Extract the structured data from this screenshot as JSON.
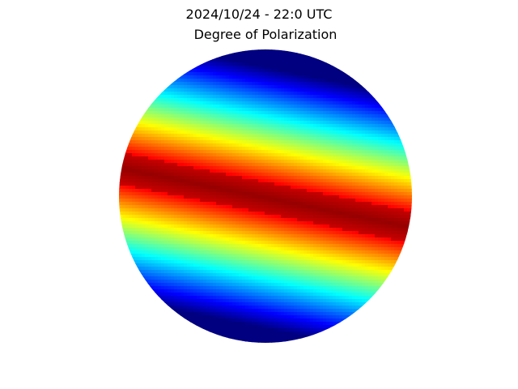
{
  "figure": {
    "suptitle": "2024/10/24 - 22:0 UTC"
  },
  "chart_data": {
    "type": "heatmap",
    "title": "Degree of Polarization",
    "projection": "all-sky disk (circular)",
    "colormap": "jet",
    "axes_visible": false,
    "colorbar": false,
    "grid": false,
    "pattern": "diagonal bands of degree of polarization; maximum (dark red) band runs across the disk center from upper-left to lower-right, falling off through red, yellow, cyan to dark blue toward the top-right and bottom edges"
  }
}
